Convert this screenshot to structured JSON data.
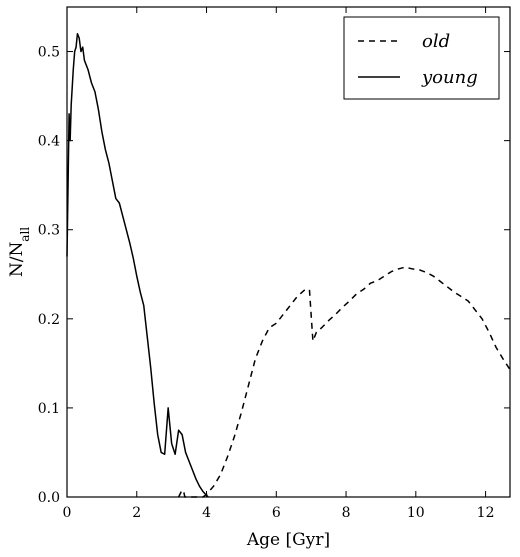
{
  "chart_data": {
    "type": "line",
    "title": "",
    "xlabel": "Age [Gyr]",
    "ylabel_base": "N/N",
    "ylabel_sub": "all",
    "xlim": [
      0,
      12.7
    ],
    "ylim": [
      0,
      0.55
    ],
    "xticks": [
      0,
      2,
      4,
      6,
      8,
      10,
      12
    ],
    "xtick_labels": [
      "0",
      "2",
      "4",
      "6",
      "8",
      "10",
      "12"
    ],
    "yticks": [
      0.0,
      0.1,
      0.2,
      0.3,
      0.4,
      0.5
    ],
    "ytick_labels": [
      "0.0",
      "0.1",
      "0.2",
      "0.3",
      "0.4",
      "0.5"
    ],
    "grid": false,
    "legend": {
      "placement": "top-right",
      "entries": [
        "old",
        "young"
      ]
    },
    "series": [
      {
        "name": "old",
        "style": "dashed",
        "color": "#000000",
        "x": [
          3.2,
          3.3,
          3.35,
          3.38,
          3.9,
          4.0,
          4.2,
          4.4,
          4.6,
          4.8,
          5.0,
          5.2,
          5.4,
          5.6,
          5.8,
          6.0,
          6.2,
          6.4,
          6.6,
          6.8,
          6.95,
          7.05,
          7.15,
          7.3,
          7.5,
          7.7,
          7.9,
          8.1,
          8.3,
          8.5,
          8.7,
          8.9,
          9.1,
          9.3,
          9.5,
          9.7,
          9.9,
          10.1,
          10.3,
          10.5,
          10.7,
          10.9,
          11.1,
          11.3,
          11.5,
          11.7,
          11.9,
          12.1,
          12.3,
          12.5,
          12.7
        ],
        "y": [
          0.0,
          0.008,
          0.005,
          0.0,
          0.0,
          0.003,
          0.012,
          0.025,
          0.045,
          0.068,
          0.095,
          0.125,
          0.155,
          0.175,
          0.19,
          0.195,
          0.205,
          0.215,
          0.225,
          0.232,
          0.233,
          0.175,
          0.185,
          0.19,
          0.198,
          0.205,
          0.213,
          0.22,
          0.228,
          0.233,
          0.24,
          0.243,
          0.248,
          0.253,
          0.256,
          0.258,
          0.256,
          0.255,
          0.252,
          0.248,
          0.242,
          0.236,
          0.23,
          0.225,
          0.22,
          0.21,
          0.2,
          0.185,
          0.168,
          0.155,
          0.143
        ]
      },
      {
        "name": "young",
        "style": "solid",
        "color": "#000000",
        "x": [
          0.0,
          0.03,
          0.06,
          0.09,
          0.12,
          0.15,
          0.18,
          0.22,
          0.26,
          0.3,
          0.35,
          0.4,
          0.45,
          0.5,
          0.6,
          0.7,
          0.8,
          0.9,
          1.0,
          1.1,
          1.2,
          1.3,
          1.4,
          1.5,
          1.6,
          1.7,
          1.8,
          1.9,
          2.0,
          2.1,
          2.2,
          2.3,
          2.4,
          2.5,
          2.6,
          2.7,
          2.8,
          2.9,
          3.0,
          3.1,
          3.2,
          3.3,
          3.4,
          3.5,
          3.6,
          3.7,
          3.8,
          3.9,
          4.0,
          4.05
        ],
        "y": [
          0.27,
          0.35,
          0.43,
          0.4,
          0.44,
          0.46,
          0.48,
          0.5,
          0.505,
          0.52,
          0.515,
          0.5,
          0.505,
          0.49,
          0.48,
          0.465,
          0.455,
          0.435,
          0.41,
          0.39,
          0.375,
          0.355,
          0.335,
          0.33,
          0.315,
          0.3,
          0.285,
          0.268,
          0.248,
          0.23,
          0.215,
          0.18,
          0.145,
          0.105,
          0.07,
          0.05,
          0.048,
          0.1,
          0.06,
          0.048,
          0.075,
          0.07,
          0.05,
          0.04,
          0.03,
          0.02,
          0.012,
          0.006,
          0.002,
          0.0
        ]
      }
    ]
  }
}
